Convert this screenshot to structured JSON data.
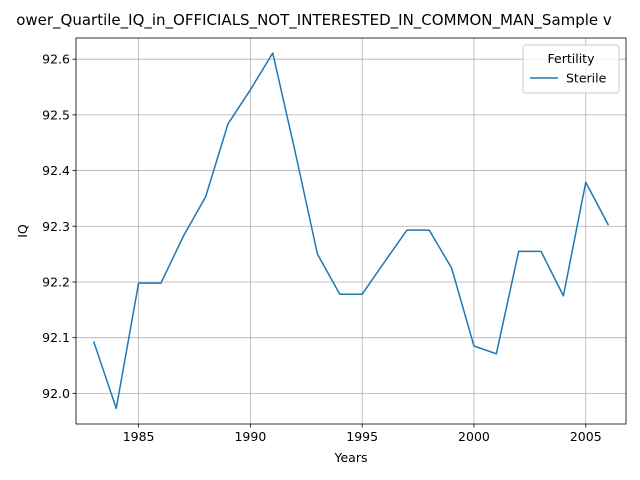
{
  "chart_data": {
    "type": "line",
    "title": "ower_Quartile_IQ_in_OFFICIALS_NOT_INTERESTED_IN_COMMON_MAN_Sample v",
    "xlabel": "Years",
    "ylabel": "IQ",
    "xlim": [
      1982.2,
      2006.8
    ],
    "ylim": [
      91.945,
      92.638
    ],
    "xticks": [
      1985,
      1990,
      1995,
      2000,
      2005
    ],
    "xtick_labels": [
      "1985",
      "1990",
      "1995",
      "2000",
      "2005"
    ],
    "yticks": [
      92.0,
      92.1,
      92.2,
      92.3,
      92.4,
      92.5,
      92.6
    ],
    "ytick_labels": [
      "92.0",
      "92.1",
      "92.2",
      "92.3",
      "92.4",
      "92.5",
      "92.6"
    ],
    "grid": true,
    "legend": {
      "title": "Fertility",
      "placement": "top-right"
    },
    "x": [
      1983,
      1984,
      1985,
      1986,
      1987,
      1988,
      1989,
      1990,
      1991,
      1992,
      1993,
      1994,
      1995,
      1996,
      1997,
      1998,
      1999,
      2000,
      2001,
      2002,
      2003,
      2004,
      2005,
      2006
    ],
    "series": [
      {
        "name": "Sterile",
        "color": "#1f77b4",
        "values": [
          92.092,
          91.973,
          92.198,
          92.198,
          92.282,
          92.353,
          92.484,
          92.545,
          92.611,
          92.434,
          92.25,
          92.178,
          92.178,
          92.236,
          92.293,
          92.293,
          92.225,
          92.085,
          92.071,
          92.255,
          92.255,
          92.175,
          92.379,
          92.303
        ]
      }
    ]
  }
}
